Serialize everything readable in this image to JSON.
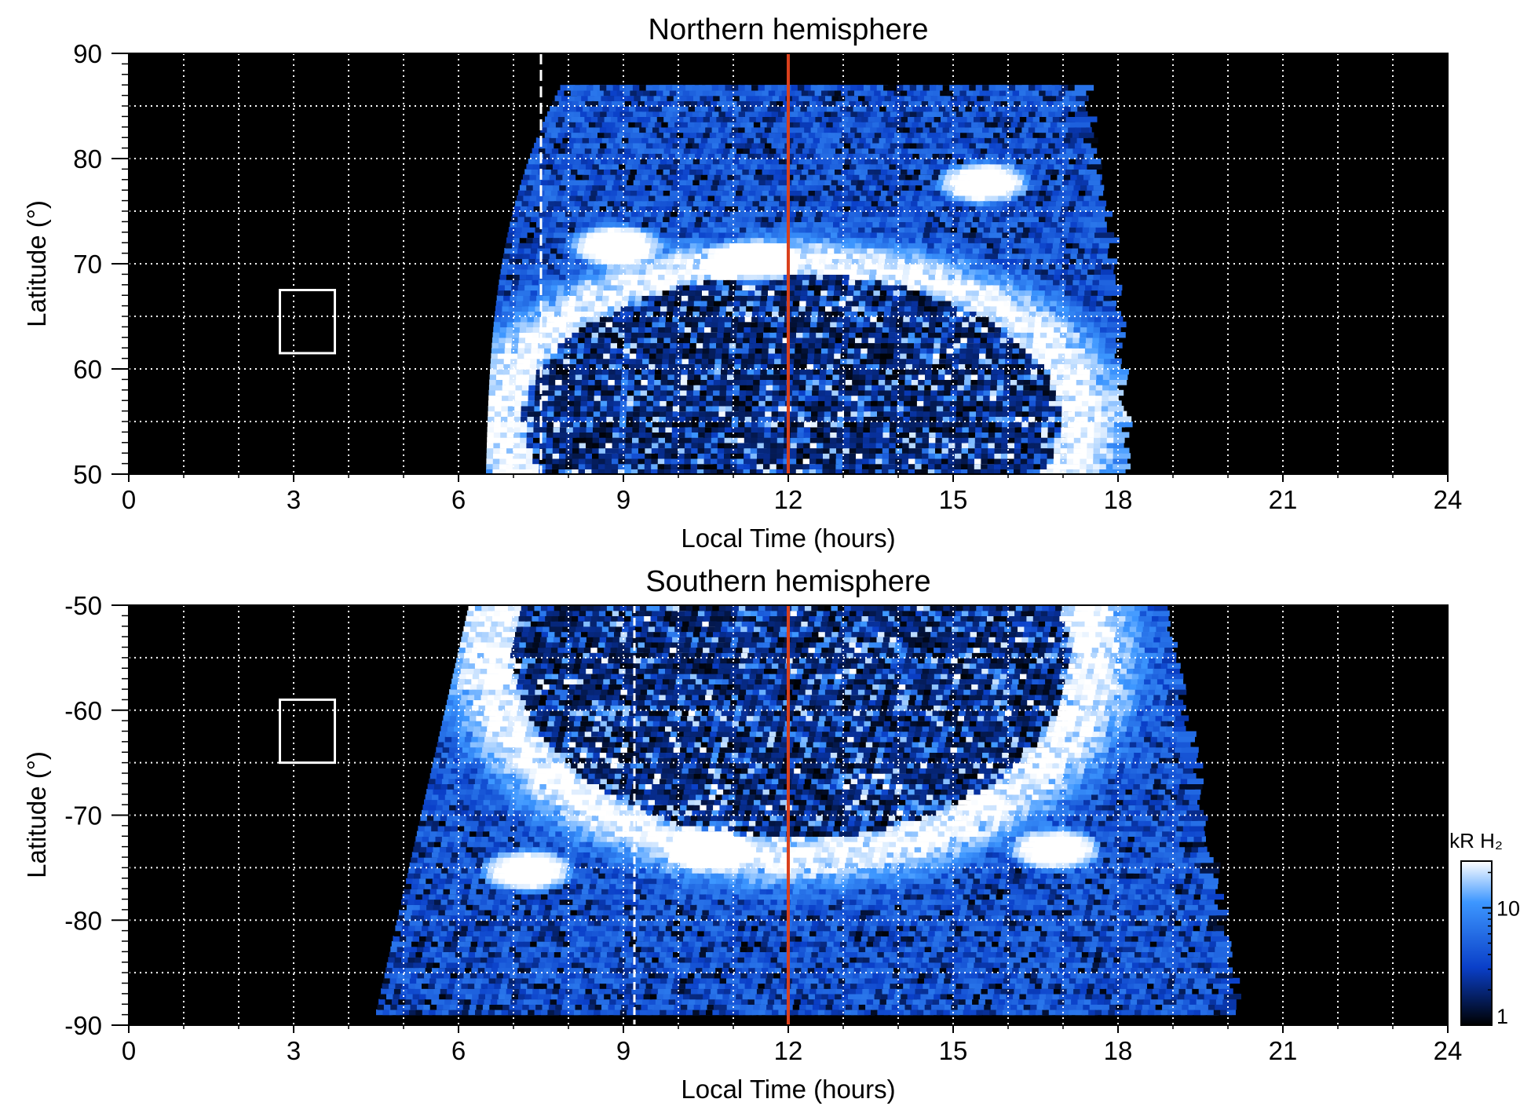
{
  "colors": {
    "background": "#000000",
    "grid": "#ffffff",
    "noon_line": "#d9401c",
    "cmap_low": "#000000",
    "cmap_mid": "#0a3fc8",
    "cmap_high": "#3d97ff",
    "cmap_top": "#ffffff"
  },
  "colorbar": {
    "label": "kR H₂",
    "scale": "log",
    "range": [
      1,
      25
    ],
    "ticks": [
      {
        "value": 1,
        "label": "1"
      },
      {
        "value": 10,
        "label": "10"
      }
    ]
  },
  "chart_data": [
    {
      "type": "heatmap",
      "name": "north",
      "title": "Northern hemisphere",
      "xlabel": "Local Time (hours)",
      "ylabel": "Latitude (°)",
      "xlim": [
        0,
        24
      ],
      "ylim": [
        50,
        90
      ],
      "x_ticks": [
        0,
        3,
        6,
        9,
        12,
        15,
        18,
        21,
        24
      ],
      "x_tick_labels": [
        "0",
        "3",
        "6",
        "9",
        "12",
        "15",
        "18",
        "21",
        "24"
      ],
      "y_ticks": [
        50,
        60,
        70,
        80,
        90
      ],
      "y_tick_labels": [
        "50",
        "60",
        "70",
        "80",
        "90"
      ],
      "grid": true,
      "grid_x_step": 1,
      "grid_y_step": 5,
      "noon_line_x": 12,
      "dashed_line_x": 7.5,
      "box": {
        "x": [
          2.75,
          3.75
        ],
        "y": [
          61.5,
          67.5
        ]
      },
      "coverage": {
        "lt_start": [
          6.5,
          6.7
        ],
        "lt_end": [
          18.0,
          17.6
        ],
        "lat_max": 87
      },
      "auroral_oval": {
        "center_lt": 12,
        "center_lat": 55,
        "lt_half_width": 5.3,
        "lat_half_height": 15,
        "peak_kR": 25
      },
      "hot_spots": [
        {
          "lt": 8.8,
          "lat": 71.5,
          "kR": 25
        },
        {
          "lt": 11.3,
          "lat": 70,
          "kR": 25
        },
        {
          "lt": 15.5,
          "lat": 77.5,
          "kR": 25
        }
      ]
    },
    {
      "type": "heatmap",
      "name": "south",
      "title": "Southern hemisphere",
      "xlabel": "Local Time (hours)",
      "ylabel": "Latitude (°)",
      "xlim": [
        0,
        24
      ],
      "ylim": [
        -90,
        -50
      ],
      "x_ticks": [
        0,
        3,
        6,
        9,
        12,
        15,
        18,
        21,
        24
      ],
      "x_tick_labels": [
        "0",
        "3",
        "6",
        "9",
        "12",
        "15",
        "18",
        "21",
        "24"
      ],
      "y_ticks": [
        -90,
        -80,
        -70,
        -60,
        -50
      ],
      "y_tick_labels": [
        "-90",
        "-80",
        "-70",
        "-60",
        "-50"
      ],
      "grid": true,
      "grid_x_step": 1,
      "grid_y_step": 5,
      "noon_line_x": 12,
      "dashed_line_x": 9.2,
      "box": {
        "x": [
          2.75,
          3.75
        ],
        "y": [
          -65,
          -59
        ]
      },
      "coverage": {
        "lt_start": [
          6.2,
          4.5
        ],
        "lt_end": [
          18.7,
          20.0
        ],
        "lat_min": -89
      },
      "auroral_oval": {
        "center_lt": 12,
        "center_lat": -55,
        "lt_half_width": 5.5,
        "lat_half_height": 19,
        "peak_kR": 25
      },
      "hot_spots": [
        {
          "lt": 7.2,
          "lat": -75.5,
          "kR": 25
        },
        {
          "lt": 10.5,
          "lat": -73.5,
          "kR": 25
        },
        {
          "lt": 16.8,
          "lat": -73.5,
          "kR": 25
        }
      ]
    }
  ]
}
